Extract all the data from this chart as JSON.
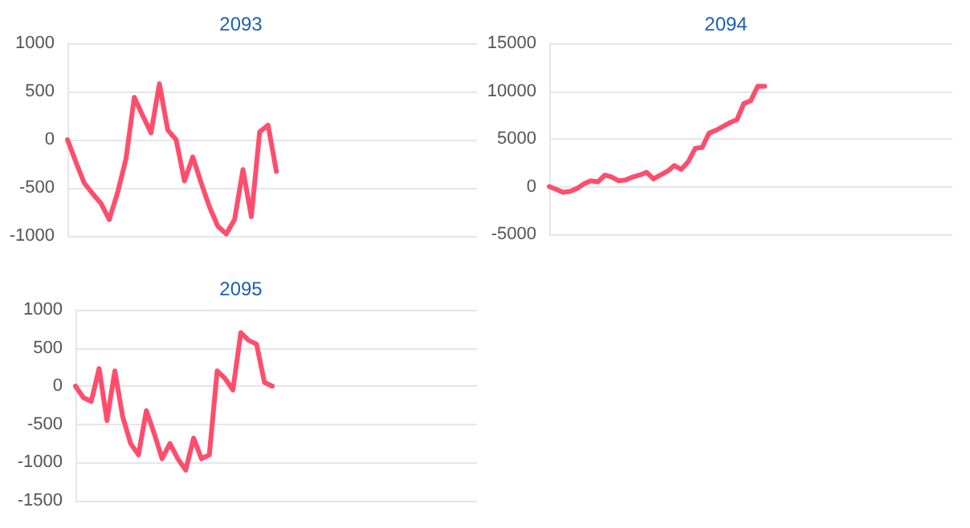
{
  "chart_data": [
    {
      "type": "line",
      "title": "2093",
      "categories": [
        null,
        null,
        null,
        null,
        null,
        null,
        null,
        null,
        null,
        null,
        null,
        null,
        null,
        null,
        null,
        null,
        null,
        null,
        null,
        null,
        null,
        null,
        null,
        null,
        null,
        null,
        null,
        null,
        null,
        null,
        null,
        null,
        null,
        null,
        null,
        null,
        null,
        null,
        null,
        null,
        null,
        null,
        null,
        null,
        null,
        null,
        null,
        null,
        null,
        null
      ],
      "series": [
        {
          "color": "#ff4d6d",
          "values": [
            0,
            -230,
            -450,
            -560,
            -660,
            -830,
            -550,
            -200,
            440,
            250,
            70,
            580,
            100,
            0,
            -430,
            -180,
            -450,
            -700,
            -900,
            -980,
            -830,
            -310,
            -800,
            80,
            150,
            -330,
            null,
            null,
            null,
            null,
            null,
            null,
            null,
            null,
            null,
            null,
            null,
            null,
            null,
            null,
            null,
            null,
            null,
            null,
            null,
            null,
            null,
            null,
            null,
            null
          ]
        }
      ],
      "ylim": [
        -1000,
        1000
      ],
      "yticks": [
        -1000,
        -500,
        0,
        500,
        1000
      ],
      "grid": "y",
      "tick_labels": "y",
      "line_style": "solid"
    },
    {
      "type": "line",
      "title": "2094",
      "categories": [
        null,
        null,
        null,
        null,
        null,
        null,
        null,
        null,
        null,
        null,
        null,
        null,
        null,
        null,
        null,
        null,
        null,
        null,
        null,
        null,
        null,
        null,
        null,
        null,
        null,
        null,
        null,
        null,
        null,
        null,
        null,
        null,
        null,
        null,
        null,
        null,
        null,
        null,
        null,
        null,
        null,
        null,
        null,
        null,
        null,
        null,
        null,
        null,
        null,
        null,
        null,
        null,
        null,
        null,
        null,
        null,
        null,
        null,
        null
      ],
      "series": [
        {
          "color": "#ff4d6d",
          "values": [
            0,
            -300,
            -600,
            -500,
            -200,
            300,
            600,
            500,
            1200,
            1000,
            600,
            700,
            1000,
            1200,
            1500,
            800,
            1200,
            1600,
            2200,
            1800,
            2600,
            4000,
            4100,
            5600,
            5900,
            6300,
            6700,
            7000,
            8700,
            9000,
            10500,
            10500,
            null,
            null,
            null,
            null,
            null,
            null,
            null,
            null,
            null,
            null,
            null,
            null,
            null,
            null,
            null,
            null,
            null,
            null,
            null,
            null,
            null,
            null,
            null,
            null,
            null,
            null,
            null
          ]
        }
      ],
      "ylim": [
        -5000,
        15000
      ],
      "yticks": [
        -5000,
        0,
        5000,
        10000,
        15000
      ],
      "grid": "y",
      "tick_labels": "y",
      "line_style": "solid"
    },
    {
      "type": "line",
      "title": "2095",
      "categories": [
        null,
        null,
        null,
        null,
        null,
        null,
        null,
        null,
        null,
        null,
        null,
        null,
        null,
        null,
        null,
        null,
        null,
        null,
        null,
        null,
        null,
        null,
        null,
        null,
        null,
        null,
        null,
        null,
        null,
        null,
        null,
        null,
        null,
        null,
        null,
        null,
        null,
        null,
        null,
        null,
        null,
        null,
        null,
        null,
        null,
        null,
        null,
        null,
        null,
        null,
        null,
        null
      ],
      "series": [
        {
          "color": "#ff4d6d",
          "values": [
            0,
            -150,
            -200,
            230,
            -450,
            200,
            -400,
            -750,
            -900,
            -320,
            -620,
            -950,
            -750,
            -950,
            -1100,
            -680,
            -950,
            -900,
            200,
            100,
            -50,
            700,
            600,
            550,
            50,
            0,
            null,
            null,
            null,
            null,
            null,
            null,
            null,
            null,
            null,
            null,
            null,
            null,
            null,
            null,
            null,
            null,
            null,
            null,
            null,
            null,
            null,
            null,
            null,
            null,
            null,
            null
          ]
        }
      ],
      "ylim": [
        -1500,
        1000
      ],
      "yticks": [
        -1500,
        -1000,
        -500,
        0,
        500,
        1000
      ],
      "grid": "y",
      "tick_labels": "y",
      "line_style": "solid"
    }
  ]
}
